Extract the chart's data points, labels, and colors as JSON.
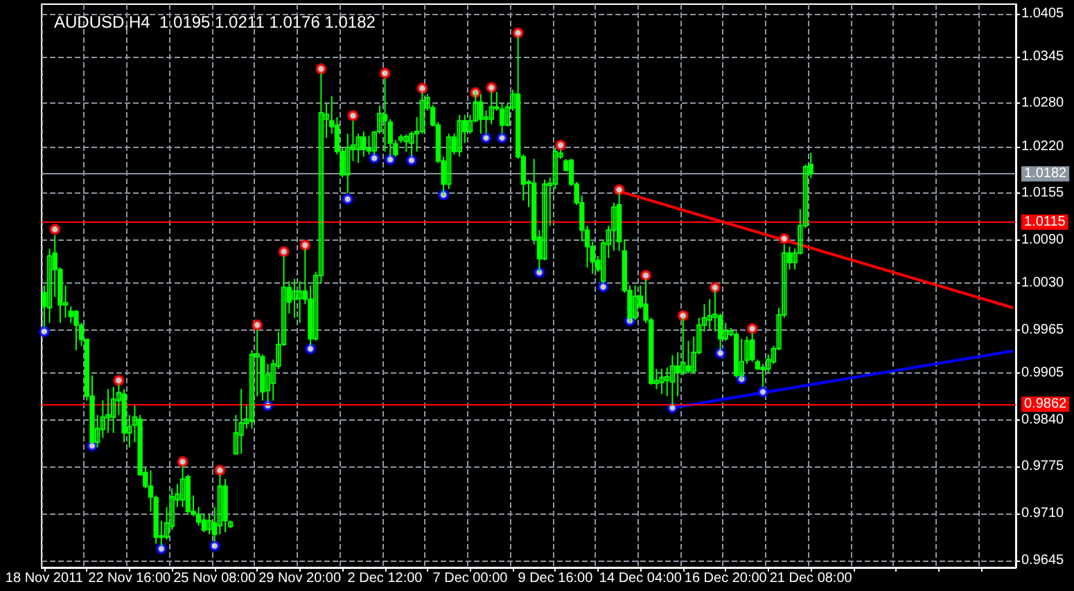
{
  "chart_data": {
    "type": "candlestick",
    "title": "AUDUSD,H4  1.0195 1.0211 1.0176 1.0182",
    "color": "#00ff00",
    "grid": true,
    "categories": [
      "18 Nov 2011",
      null,
      null,
      null,
      null,
      null,
      null,
      null,
      null,
      null,
      null,
      null,
      null,
      null,
      null,
      null,
      "22 Nov 16:00",
      null,
      null,
      null,
      null,
      null,
      null,
      null,
      null,
      null,
      null,
      null,
      null,
      null,
      null,
      null,
      "25 Nov 08:00",
      null,
      null,
      null,
      null,
      null,
      null,
      null,
      null,
      null,
      null,
      null,
      null,
      null,
      null,
      null,
      "29 Nov 20:00",
      null,
      null,
      null,
      null,
      null,
      null,
      null,
      null,
      null,
      null,
      null,
      null,
      null,
      null,
      null,
      "2 Dec 12:00",
      null,
      null,
      null,
      null,
      null,
      null,
      null,
      null,
      null,
      null,
      null,
      null,
      null,
      null,
      null,
      "7 Dec 00:00",
      null,
      null,
      null,
      null,
      null,
      null,
      null,
      null,
      null,
      null,
      null,
      null,
      null,
      null,
      null,
      "9 Dec 16:00",
      null,
      null,
      null,
      null,
      null,
      null,
      null,
      null,
      null,
      null,
      null,
      null,
      null,
      null,
      null,
      "14 Dec 04:00",
      null,
      null,
      null,
      null,
      null,
      null,
      null,
      null,
      null,
      null,
      null,
      null,
      null,
      null,
      null,
      "16 Dec 20:00",
      null,
      null,
      null,
      null,
      null,
      null,
      null,
      null,
      null,
      null,
      null,
      null,
      null,
      null,
      null,
      "21 Dec 08:00",
      null,
      null,
      null,
      null,
      null,
      null,
      null,
      null,
      null,
      null,
      null,
      null,
      null,
      null,
      null,
      null,
      null,
      null,
      null,
      null,
      null,
      null,
      null,
      null,
      null,
      null,
      null,
      null,
      null,
      null,
      null,
      null,
      null,
      null,
      null,
      null,
      null,
      null
    ],
    "ohlc": [
      [
        1.0017,
        1.0027,
        0.9969,
        0.9998
      ],
      [
        0.9996,
        1.0078,
        0.9975,
        1.0068
      ],
      [
        1.0072,
        1.0097,
        1.0011,
        1.0049
      ],
      [
        1.0049,
        1.0052,
        0.9975,
        1.0
      ],
      [
        1.0,
        1.0027,
        0.9982,
        1.0003
      ],
      [
        0.9991,
        0.9998,
        0.9975,
        0.9984
      ],
      [
        0.9991,
        0.9993,
        0.9937,
        0.9972
      ],
      [
        0.9972,
        0.9975,
        0.9943,
        0.9952
      ],
      [
        0.9952,
        0.9953,
        0.9867,
        0.9873
      ],
      [
        0.9873,
        0.9902,
        0.9808,
        0.9809
      ],
      [
        0.9809,
        0.9847,
        0.9802,
        0.9828
      ],
      [
        0.9827,
        0.9867,
        0.9815,
        0.9844
      ],
      [
        0.9843,
        0.9883,
        0.9822,
        0.9847
      ],
      [
        0.9844,
        0.9886,
        0.9822,
        0.9869
      ],
      [
        0.9867,
        0.9889,
        0.9847,
        0.9878
      ],
      [
        0.9876,
        0.9883,
        0.9809,
        0.9822
      ],
      [
        0.9822,
        0.9847,
        0.9802,
        0.9831
      ],
      [
        0.9833,
        0.986,
        0.9809,
        0.9844
      ],
      [
        0.9841,
        0.9847,
        0.9763,
        0.9764
      ],
      [
        0.9767,
        0.9774,
        0.9745,
        0.9748
      ],
      [
        0.9748,
        0.977,
        0.9713,
        0.9733
      ],
      [
        0.9732,
        0.9735,
        0.9668,
        0.9677
      ],
      [
        0.9677,
        0.97,
        0.9665,
        0.9679
      ],
      [
        0.9677,
        0.9719,
        0.9674,
        0.9697
      ],
      [
        0.9692,
        0.9745,
        0.9687,
        0.9733
      ],
      [
        0.9729,
        0.9751,
        0.9719,
        0.9737
      ],
      [
        0.9729,
        0.9776,
        0.9719,
        0.9758
      ],
      [
        0.9761,
        0.9764,
        0.9709,
        0.9713
      ],
      [
        0.9713,
        0.9735,
        0.9706,
        0.9709
      ],
      [
        0.9709,
        0.9719,
        0.9693,
        0.9698
      ],
      [
        0.9701,
        0.9709,
        0.9684,
        0.9687
      ],
      [
        0.9688,
        0.9709,
        0.9681,
        0.97
      ],
      [
        0.9697,
        0.9719,
        0.9671,
        0.9681
      ],
      [
        0.9693,
        0.9764,
        0.9681,
        0.9748
      ],
      [
        0.9748,
        0.9758,
        0.9684,
        0.97
      ],
      [
        0.9692,
        0.97,
        0.969,
        0.9698
      ],
      [
        0.9793,
        0.9847,
        0.9793,
        0.9822
      ],
      [
        0.9819,
        0.9883,
        0.9793,
        0.9836
      ],
      [
        0.9835,
        0.986,
        0.9828,
        0.9841
      ],
      [
        0.9838,
        0.9937,
        0.9828,
        0.9931
      ],
      [
        0.9928,
        0.9966,
        0.9873,
        0.9932
      ],
      [
        0.9928,
        0.9931,
        0.9867,
        0.9879
      ],
      [
        0.9881,
        0.9918,
        0.9865,
        0.9903
      ],
      [
        0.9891,
        0.9924,
        0.9867,
        0.9918
      ],
      [
        0.9915,
        0.9963,
        0.9911,
        0.9945
      ],
      [
        0.9945,
        1.0068,
        0.9943,
        1.0024
      ],
      [
        1.0024,
        1.0033,
        0.9988,
        1.0004
      ],
      [
        1.0008,
        1.0036,
        0.9982,
        1.0019
      ],
      [
        1.0009,
        1.0033,
        0.9975,
        1.0019
      ],
      [
        1.0019,
        1.0078,
        1.0001,
        1.0008
      ],
      [
        1.0008,
        1.0027,
        0.9943,
        0.9953
      ],
      [
        0.9953,
        1.0046,
        0.995,
        1.0041
      ],
      [
        1.0041,
        1.0322,
        1.003,
        1.0267
      ],
      [
        1.0258,
        1.028,
        1.0232,
        1.0265
      ],
      [
        1.0256,
        1.029,
        1.0238,
        1.0248
      ],
      [
        1.025,
        1.0261,
        1.0209,
        1.0213
      ],
      [
        1.0213,
        1.0219,
        1.0177,
        1.0181
      ],
      [
        1.0181,
        1.0238,
        1.0155,
        1.0219
      ],
      [
        1.0216,
        1.0256,
        1.02,
        1.0222
      ],
      [
        1.0216,
        1.0238,
        1.0197,
        1.0233
      ],
      [
        1.0233,
        1.0241,
        1.0206,
        1.0216
      ],
      [
        1.0217,
        1.0235,
        1.0209,
        1.0214
      ],
      [
        1.0214,
        1.0241,
        1.0209,
        1.024
      ],
      [
        1.0241,
        1.0277,
        1.0238,
        1.0266
      ],
      [
        1.0264,
        1.0315,
        1.0213,
        1.0256
      ],
      [
        1.0254,
        1.0258,
        1.0206,
        1.0225
      ],
      [
        1.0224,
        1.0229,
        1.0206,
        1.0209
      ],
      [
        1.0229,
        1.0237,
        1.0225,
        1.0233
      ],
      [
        1.0227,
        1.0237,
        1.0213,
        1.0234
      ],
      [
        1.0225,
        1.0241,
        1.0206,
        1.0238
      ],
      [
        1.0238,
        1.0261,
        1.0213,
        1.0241
      ],
      [
        1.0241,
        1.0296,
        1.0238,
        1.0284
      ],
      [
        1.0274,
        1.0293,
        1.027,
        1.0288
      ],
      [
        1.0274,
        1.0278,
        1.0248,
        1.025
      ],
      [
        1.025,
        1.0254,
        1.0197,
        1.02
      ],
      [
        1.02,
        1.0206,
        1.0152,
        1.0168
      ],
      [
        1.0168,
        1.0238,
        1.0161,
        1.0233
      ],
      [
        1.0233,
        1.0238,
        1.0209,
        1.0213
      ],
      [
        1.0213,
        1.0264,
        1.0206,
        1.0256
      ],
      [
        1.0256,
        1.0264,
        1.0225,
        1.0241
      ],
      [
        1.0241,
        1.0264,
        1.0238,
        1.0256
      ],
      [
        1.0256,
        1.0297,
        1.0254,
        1.0282
      ],
      [
        1.0282,
        1.0293,
        1.0238,
        1.0258
      ],
      [
        1.0258,
        1.027,
        1.0238,
        1.0261
      ],
      [
        1.0258,
        1.0297,
        1.0251,
        1.0275
      ],
      [
        1.0275,
        1.0296,
        1.027,
        1.0274
      ],
      [
        1.0272,
        1.028,
        1.0238,
        1.025
      ],
      [
        1.025,
        1.028,
        1.0248,
        1.0275
      ],
      [
        1.0274,
        1.0299,
        1.027,
        1.0293
      ],
      [
        1.0293,
        1.0373,
        1.0203,
        1.0206
      ],
      [
        1.0206,
        1.0209,
        1.0145,
        1.0168
      ],
      [
        1.0169,
        1.0174,
        1.0136,
        1.0171
      ],
      [
        1.0169,
        1.0203,
        1.0084,
        1.0091
      ],
      [
        1.0094,
        1.0104,
        1.0046,
        1.0064
      ],
      [
        1.0064,
        1.0174,
        1.0062,
        1.0168
      ],
      [
        1.0166,
        1.0177,
        1.011,
        1.0169
      ],
      [
        1.0168,
        1.0219,
        1.0161,
        1.0213
      ],
      [
        1.0206,
        1.0216,
        1.0203,
        1.0211
      ],
      [
        1.02,
        1.0203,
        1.0186,
        1.0187
      ],
      [
        1.0201,
        1.0203,
        1.0165,
        1.0168
      ],
      [
        1.0168,
        1.0171,
        1.0139,
        1.0142
      ],
      [
        1.0142,
        1.0152,
        1.0088,
        1.0104
      ],
      [
        1.0104,
        1.011,
        1.0052,
        1.0081
      ],
      [
        1.0081,
        1.0088,
        1.0043,
        1.006
      ],
      [
        1.0062,
        1.0068,
        1.0046,
        1.0049
      ],
      [
        1.0033,
        1.0091,
        1.003,
        1.0086
      ],
      [
        1.0084,
        1.011,
        1.0065,
        1.0104
      ],
      [
        1.0104,
        1.0142,
        1.0075,
        1.0136
      ],
      [
        1.0139,
        1.0155,
        1.0075,
        1.0088
      ],
      [
        1.0075,
        1.0091,
        1.0017,
        1.002
      ],
      [
        1.002,
        1.0027,
        0.9975,
        0.9982
      ],
      [
        0.9982,
        1.0027,
        0.9979,
        1.0012
      ],
      [
        1.0012,
        1.0027,
        0.9995,
        0.9998
      ],
      [
        1.0001,
        1.0036,
        0.9975,
        0.9979
      ],
      [
        0.9979,
        0.9982,
        0.9889,
        0.9891
      ],
      [
        0.9891,
        0.9911,
        0.9883,
        0.9895
      ],
      [
        0.9892,
        0.9911,
        0.9876,
        0.9899
      ],
      [
        0.9895,
        0.9913,
        0.9873,
        0.99
      ],
      [
        0.9893,
        0.993,
        0.986,
        0.9915
      ],
      [
        0.9915,
        0.9934,
        0.9873,
        0.9906
      ],
      [
        0.9906,
        0.9982,
        0.9902,
        0.992
      ],
      [
        0.9915,
        0.995,
        0.9905,
        0.9908
      ],
      [
        0.9908,
        0.9956,
        0.9904,
        0.9934
      ],
      [
        0.9934,
        0.9982,
        0.9931,
        0.9972
      ],
      [
        0.9972,
        1.0001,
        0.9963,
        0.9982
      ],
      [
        0.9979,
        1.0008,
        0.9966,
        0.9985
      ],
      [
        0.9983,
        1.002,
        0.9963,
        0.9987
      ],
      [
        0.9985,
        0.9988,
        0.9937,
        0.9953
      ],
      [
        0.9953,
        0.9975,
        0.995,
        0.9964
      ],
      [
        0.9959,
        0.9968,
        0.9956,
        0.9964
      ],
      [
        0.9959,
        0.9963,
        0.9899,
        0.9902
      ],
      [
        0.9902,
        0.9953,
        0.9896,
        0.9921
      ],
      [
        0.9923,
        0.9956,
        0.9918,
        0.995
      ],
      [
        0.9951,
        0.9961,
        0.9921,
        0.9924
      ],
      [
        0.9921,
        0.9924,
        0.991,
        0.9911
      ],
      [
        0.9913,
        0.9918,
        0.9886,
        0.991
      ],
      [
        0.9911,
        0.9931,
        0.9905,
        0.9924
      ],
      [
        0.9921,
        0.9943,
        0.9918,
        0.9939
      ],
      [
        0.9939,
        0.9996,
        0.9937,
        0.9986
      ],
      [
        0.9986,
        1.0084,
        0.9982,
        1.0072
      ],
      [
        1.0072,
        1.0081,
        1.0049,
        1.0059
      ],
      [
        1.0059,
        1.0078,
        1.0049,
        1.0072
      ],
      [
        1.0072,
        1.0133,
        1.007,
        1.011
      ],
      [
        1.011,
        1.0195,
        1.0107,
        1.0192
      ],
      [
        1.0195,
        1.0211,
        1.0176,
        1.0182
      ],
      null,
      null,
      null,
      null,
      null,
      null,
      null,
      null,
      null,
      null,
      null,
      null,
      null,
      null,
      null,
      null,
      null,
      null,
      null,
      null,
      null,
      null,
      null,
      null,
      null,
      null,
      null,
      null,
      null,
      null,
      null,
      null,
      null,
      null,
      null,
      null,
      null,
      null
    ],
    "ylim": [
      0.9635,
      1.0418
    ],
    "yticks": [
      0.9645,
      {
        "value": 0.971,
        "label": "0.9710"
      },
      0.9775,
      {
        "value": 0.984,
        "label": "0.9840"
      },
      0.9905,
      0.9965,
      {
        "value": 1.003,
        "label": "1.0030"
      },
      {
        "value": 1.009,
        "label": "1.0090"
      },
      1.0155,
      {
        "value": 1.022,
        "label": "1.0220"
      },
      {
        "value": 1.028,
        "label": "1.0280"
      },
      1.0345,
      1.0405
    ],
    "ref_lines": [
      {
        "axis": "y",
        "value": 1.0115,
        "label": "1.0115",
        "color": "#ff0000"
      },
      {
        "axis": "y",
        "value": 0.9862,
        "label": "0.9862",
        "color": "#ff0000"
      },
      {
        "axis": "y",
        "value": 1.0182,
        "label": "1.0182",
        "color": "#8c96a0"
      }
    ],
    "series": [
      {
        "type": "scatter",
        "color": "#ff0000",
        "marker": "circle",
        "values": [
          null,
          null,
          1.0105,
          null,
          null,
          null,
          null,
          null,
          null,
          null,
          null,
          null,
          null,
          null,
          0.9895,
          null,
          null,
          null,
          null,
          null,
          null,
          null,
          null,
          null,
          null,
          null,
          0.9782,
          null,
          null,
          null,
          null,
          null,
          null,
          0.977,
          null,
          null,
          null,
          null,
          null,
          null,
          0.9972,
          null,
          null,
          null,
          null,
          1.0074,
          null,
          null,
          null,
          1.0083,
          null,
          null,
          1.0328,
          null,
          null,
          null,
          null,
          null,
          1.0263,
          null,
          null,
          null,
          null,
          null,
          1.0322,
          null,
          null,
          null,
          null,
          null,
          null,
          1.0301,
          null,
          null,
          null,
          null,
          null,
          null,
          null,
          null,
          null,
          1.0295,
          null,
          null,
          1.0302,
          null,
          null,
          null,
          null,
          1.0378,
          null,
          null,
          null,
          null,
          null,
          null,
          null,
          1.0222,
          null,
          null,
          null,
          null,
          null,
          null,
          null,
          null,
          null,
          null,
          1.016,
          null,
          null,
          null,
          null,
          1.0041,
          null,
          null,
          null,
          null,
          null,
          null,
          0.9985,
          null,
          null,
          null,
          null,
          null,
          1.0024,
          null,
          null,
          null,
          null,
          null,
          null,
          0.9967,
          null,
          null,
          null,
          null,
          null,
          1.0092,
          null,
          null,
          null,
          null,
          null,
          null,
          null,
          null,
          null,
          null,
          null,
          null,
          null,
          null,
          null,
          null,
          null,
          null,
          null,
          null,
          null,
          null,
          null,
          null,
          null,
          null,
          null,
          null,
          null,
          null,
          null,
          null,
          null,
          null,
          null,
          null,
          null,
          null,
          null,
          null,
          null,
          null,
          null
        ]
      },
      {
        "type": "scatter",
        "color": "#0000ff",
        "marker": "circle",
        "values": [
          0.9963,
          null,
          null,
          null,
          null,
          null,
          null,
          null,
          null,
          0.9804,
          null,
          null,
          null,
          null,
          null,
          null,
          null,
          null,
          null,
          null,
          null,
          null,
          0.9661,
          null,
          null,
          null,
          null,
          null,
          null,
          null,
          null,
          null,
          0.9665,
          null,
          null,
          null,
          null,
          null,
          null,
          null,
          null,
          null,
          0.986,
          null,
          null,
          null,
          null,
          null,
          null,
          null,
          0.9939,
          null,
          null,
          null,
          null,
          null,
          null,
          1.0147,
          null,
          null,
          null,
          null,
          1.0204,
          null,
          null,
          1.0202,
          null,
          null,
          null,
          1.0201,
          null,
          null,
          null,
          null,
          null,
          1.0153,
          null,
          null,
          null,
          null,
          null,
          null,
          null,
          1.0232,
          null,
          null,
          1.0232,
          null,
          null,
          null,
          null,
          null,
          null,
          1.0045,
          null,
          null,
          null,
          null,
          null,
          null,
          null,
          null,
          null,
          null,
          null,
          1.0025,
          null,
          null,
          null,
          null,
          0.9978,
          null,
          null,
          null,
          null,
          null,
          null,
          null,
          0.9857,
          null,
          null,
          null,
          null,
          null,
          null,
          null,
          null,
          0.9933,
          null,
          null,
          null,
          0.9897,
          null,
          null,
          null,
          0.9879,
          null,
          null,
          null,
          null,
          null,
          null,
          null,
          null,
          null,
          null,
          null,
          null,
          null,
          null,
          null,
          null,
          null,
          null,
          null,
          null,
          null,
          null,
          null,
          null,
          null,
          null,
          null,
          null,
          null,
          null,
          null,
          null,
          null,
          null,
          null,
          null,
          null,
          null,
          null,
          null,
          null,
          null,
          null,
          null,
          null,
          null,
          null
        ]
      },
      {
        "type": "line",
        "color": "#ff0000",
        "marker": "none",
        "values": [
          null,
          null,
          null,
          null,
          null,
          null,
          null,
          null,
          null,
          null,
          null,
          null,
          null,
          null,
          null,
          null,
          null,
          null,
          null,
          null,
          null,
          null,
          null,
          null,
          null,
          null,
          null,
          null,
          null,
          null,
          null,
          null,
          null,
          null,
          null,
          null,
          null,
          null,
          null,
          null,
          null,
          null,
          null,
          null,
          null,
          null,
          null,
          null,
          null,
          null,
          null,
          null,
          null,
          null,
          null,
          null,
          null,
          null,
          null,
          null,
          null,
          null,
          null,
          null,
          null,
          null,
          null,
          null,
          null,
          null,
          null,
          null,
          null,
          null,
          null,
          null,
          null,
          null,
          null,
          null,
          null,
          null,
          null,
          null,
          null,
          null,
          null,
          null,
          null,
          null,
          null,
          null,
          null,
          null,
          null,
          null,
          null,
          null,
          null,
          null,
          null,
          null,
          null,
          null,
          null,
          null,
          null,
          null,
          1.0158,
          null,
          null,
          null,
          null,
          null,
          null,
          null,
          null,
          null,
          null,
          null,
          null,
          null,
          null,
          null,
          null,
          null,
          null,
          null,
          null,
          null,
          null,
          null,
          null,
          null,
          null,
          null,
          null,
          null,
          null,
          null,
          null,
          null,
          null,
          null,
          null,
          null,
          null,
          null,
          null,
          null,
          null,
          null,
          null,
          null,
          null,
          null,
          null,
          null,
          null,
          null,
          null,
          null,
          null,
          null,
          null,
          null,
          null,
          null,
          null,
          null,
          null,
          null,
          null,
          null,
          null,
          null,
          null,
          null,
          null,
          null,
          null,
          null,
          0.9996
        ]
      },
      {
        "type": "line",
        "color": "#0000ff",
        "marker": "none",
        "values": [
          null,
          null,
          null,
          null,
          null,
          null,
          null,
          null,
          null,
          null,
          null,
          null,
          null,
          null,
          null,
          null,
          null,
          null,
          null,
          null,
          null,
          null,
          null,
          null,
          null,
          null,
          null,
          null,
          null,
          null,
          null,
          null,
          null,
          null,
          null,
          null,
          null,
          null,
          null,
          null,
          null,
          null,
          null,
          null,
          null,
          null,
          null,
          null,
          null,
          null,
          null,
          null,
          null,
          null,
          null,
          null,
          null,
          null,
          null,
          null,
          null,
          null,
          null,
          null,
          null,
          null,
          null,
          null,
          null,
          null,
          null,
          null,
          null,
          null,
          null,
          null,
          null,
          null,
          null,
          null,
          null,
          null,
          null,
          null,
          null,
          null,
          null,
          null,
          null,
          null,
          null,
          null,
          null,
          null,
          null,
          null,
          null,
          null,
          null,
          null,
          null,
          null,
          null,
          null,
          null,
          null,
          null,
          null,
          null,
          null,
          null,
          null,
          null,
          null,
          null,
          null,
          null,
          null,
          0.9857,
          null,
          null,
          null,
          null,
          null,
          null,
          null,
          null,
          null,
          null,
          null,
          null,
          null,
          null,
          null,
          null,
          null,
          null,
          null,
          null,
          null,
          null,
          null,
          null,
          null,
          null,
          null,
          null,
          null,
          null,
          null,
          null,
          null,
          null,
          null,
          null,
          null,
          null,
          null,
          null,
          null,
          null,
          null,
          null,
          null,
          null,
          null,
          null,
          null,
          null,
          null,
          null,
          null,
          null,
          null,
          null,
          null,
          null,
          null,
          null,
          null,
          null,
          null,
          0.9936
        ]
      }
    ]
  }
}
